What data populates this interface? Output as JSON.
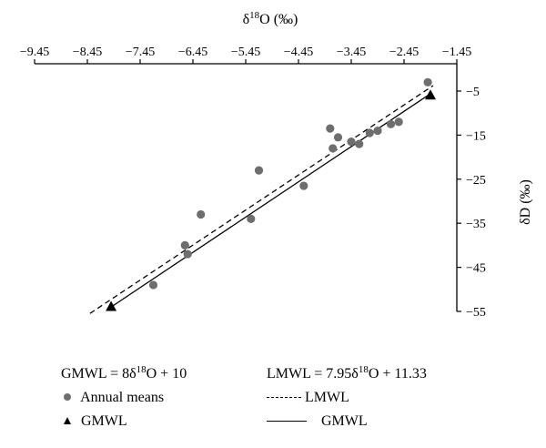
{
  "chart_data": {
    "type": "scatter",
    "xlabel": {
      "prefix": "δ",
      "sup": "18",
      "suffix": "O (‰)"
    },
    "ylabel": "δD (‰)",
    "x_axis_position": "top",
    "y_axis_position": "right",
    "xlim": [
      -9.45,
      -1.45
    ],
    "ylim": [
      -55,
      -1.5
    ],
    "x_ticks": [
      -9.45,
      -8.45,
      -7.45,
      -6.45,
      -5.45,
      -4.45,
      -3.45,
      -2.45,
      -1.45
    ],
    "x_tick_labels": [
      "−9.45",
      "−8.45",
      "−7.45",
      "−6.45",
      "−5.45",
      "−4.45",
      "−3.45",
      "−2.45",
      "−1.45"
    ],
    "y_ticks": [
      -5,
      -15,
      -25,
      -35,
      -45,
      -55
    ],
    "y_tick_labels": [
      "−5",
      "−15",
      "−25",
      "−35",
      "−45",
      "−55"
    ],
    "grid": false,
    "series": [
      {
        "name": "Annual means",
        "marker": "circle",
        "color": "#6e6e6e",
        "points": [
          [
            -2.0,
            -3.0
          ],
          [
            -2.55,
            -12.0
          ],
          [
            -2.7,
            -12.5
          ],
          [
            -2.95,
            -14.0
          ],
          [
            -3.1,
            -14.5
          ],
          [
            -3.3,
            -17.0
          ],
          [
            -3.45,
            -16.5
          ],
          [
            -3.7,
            -15.5
          ],
          [
            -3.8,
            -18.0
          ],
          [
            -3.85,
            -13.5
          ],
          [
            -4.35,
            -26.5
          ],
          [
            -5.2,
            -23.0
          ],
          [
            -5.35,
            -34.0
          ],
          [
            -6.3,
            -33.0
          ],
          [
            -6.55,
            -42.0
          ],
          [
            -6.6,
            -40.0
          ],
          [
            -7.2,
            -49.0
          ]
        ]
      },
      {
        "name": "GMWL",
        "marker": "triangle",
        "color": "#000000",
        "points": [
          [
            -8.0,
            -54.0
          ],
          [
            -1.95,
            -6.0
          ]
        ]
      }
    ],
    "lines": [
      {
        "name": "LMWL",
        "style": "dashed",
        "slope": 7.95,
        "intercept": 11.33,
        "x_range": [
          -8.4,
          -1.9
        ]
      },
      {
        "name": "GMWL",
        "style": "solid",
        "slope": 8,
        "intercept": 10,
        "x_range": [
          -8.0,
          -1.95
        ]
      }
    ]
  },
  "legend": {
    "gmwl_eq": {
      "lhs": "GMWL = 8δ",
      "sup": "18",
      "rhs": "O + 10"
    },
    "lmwl_eq": {
      "lhs": "LMWL = 7.95δ",
      "sup": "18",
      "rhs": "O + 11.33"
    },
    "annual_means": "Annual means",
    "gmwl_point": "GMWL",
    "lmwl_line": "LMWL",
    "gmwl_line": "GMWL"
  }
}
